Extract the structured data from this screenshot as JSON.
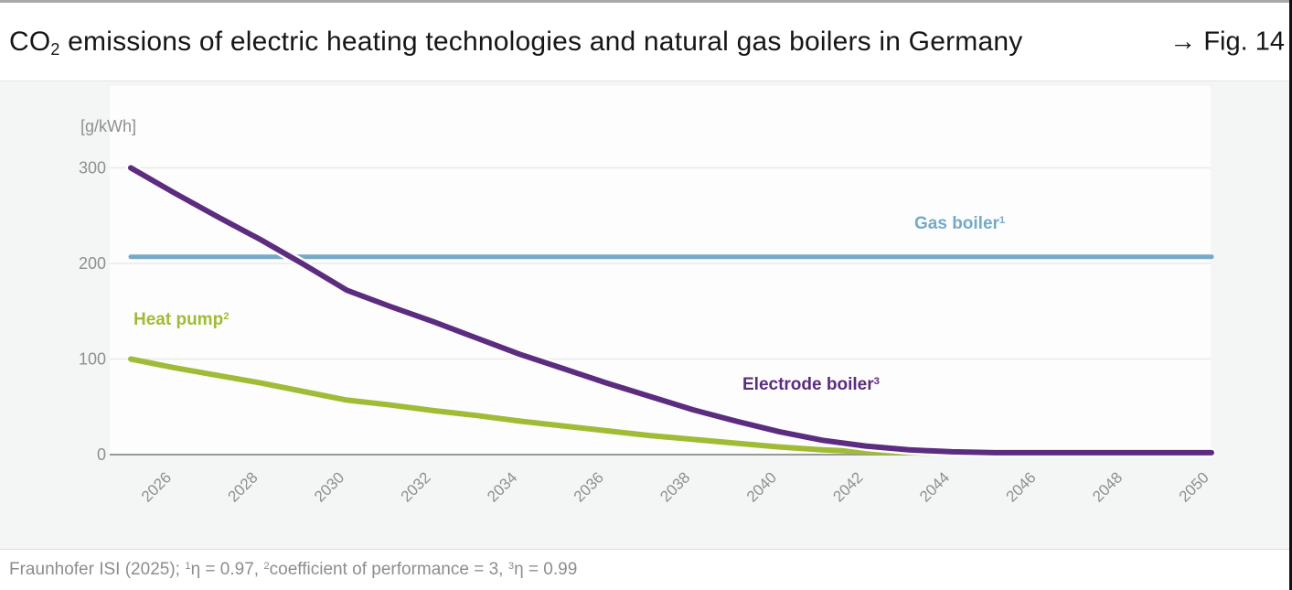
{
  "colors": {
    "gas_boiler": "#74aac8",
    "heat_pump": "#a0bb35",
    "electrode_boiler": "#5b2c7f",
    "grid": "#eaeaea",
    "axis": "#999999",
    "tick_text": "#8f8f8f",
    "title_text": "#161616",
    "footer_text": "#8d8d8d"
  },
  "header": {
    "title_parts": [
      {
        "t": "CO"
      },
      {
        "sub": "2"
      },
      {
        "t": " emissions of electric heating technologies and natural gas boilers in Germany"
      }
    ],
    "fig_label": "→ Fig. 14"
  },
  "chart_data": {
    "type": "line",
    "title": "CO₂ emissions of electric heating technologies and natural gas boilers in Germany",
    "unit_label": "[g/kWh]",
    "xlabel": "",
    "ylabel": "[g/kWh]",
    "ylim": [
      0,
      320
    ],
    "yticks": [
      0,
      100,
      200,
      300
    ],
    "xticks": [
      2026,
      2028,
      2030,
      2032,
      2034,
      2036,
      2038,
      2040,
      2042,
      2044,
      2046,
      2048,
      2050
    ],
    "grid": "horizontal",
    "legend_position": "inline-annotations",
    "x": [
      2025,
      2026,
      2027,
      2028,
      2029,
      2030,
      2031,
      2032,
      2033,
      2034,
      2035,
      2036,
      2037,
      2038,
      2039,
      2040,
      2041,
      2042,
      2043,
      2044,
      2045,
      2046,
      2047,
      2048,
      2049,
      2050
    ],
    "series": [
      {
        "name": "Gas boiler",
        "label_parts": [
          {
            "t": "Gas boiler"
          },
          {
            "sup": "1"
          }
        ],
        "color": "#74aac8",
        "values": [
          207,
          207,
          207,
          207,
          207,
          207,
          207,
          207,
          207,
          207,
          207,
          207,
          207,
          207,
          207,
          207,
          207,
          207,
          207,
          207,
          207,
          207,
          207,
          207,
          207,
          207
        ]
      },
      {
        "name": "Heat pump",
        "label_parts": [
          {
            "t": "Heat pump"
          },
          {
            "sup": "2"
          }
        ],
        "color": "#a0bb35",
        "values": [
          100,
          91,
          83,
          75,
          66,
          57,
          52,
          46,
          41,
          35,
          30,
          25,
          20,
          16,
          12,
          8,
          5,
          3,
          2,
          1,
          1,
          1,
          1,
          1,
          1,
          1
        ]
      },
      {
        "name": "Electrode boiler",
        "label_parts": [
          {
            "t": "Electrode boiler"
          },
          {
            "sup": "3"
          }
        ],
        "color": "#5b2c7f",
        "values": [
          300,
          274,
          249,
          225,
          199,
          172,
          155,
          139,
          122,
          105,
          90,
          75,
          61,
          47,
          35,
          24,
          15,
          9,
          5,
          3,
          2,
          2,
          2,
          2,
          2,
          2
        ]
      }
    ]
  },
  "footer": {
    "source_parts": [
      {
        "t": "Fraunhofer ISI (2025); "
      },
      {
        "sup": "1"
      },
      {
        "t": "η = 0.97, "
      },
      {
        "sup": "2"
      },
      {
        "t": "coefficient of performance = 3, "
      },
      {
        "sup": "3"
      },
      {
        "t": "η = 0.99"
      }
    ]
  }
}
